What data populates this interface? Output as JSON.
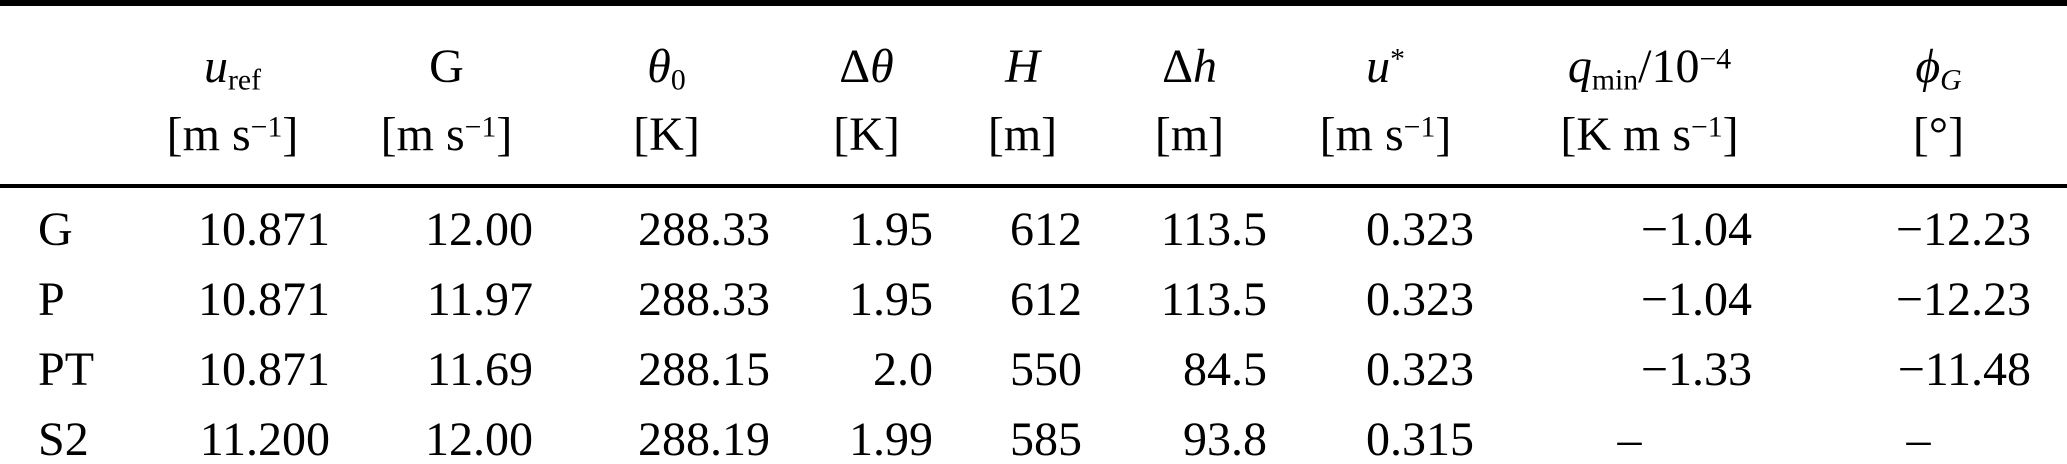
{
  "page": {
    "background": "#ffffff",
    "text_color": "#000000",
    "rule_color": "#000000"
  },
  "table": {
    "columns": [
      {
        "id": "case",
        "header": [],
        "unit": []
      },
      {
        "id": "u_ref",
        "header": [
          {
            "t": "u",
            "s": "i"
          },
          {
            "t": "ref",
            "s": "sub"
          }
        ],
        "unit": [
          {
            "t": "[m s",
            "s": "r"
          },
          {
            "t": "−1",
            "s": "sup"
          },
          {
            "t": "]",
            "s": "r"
          }
        ]
      },
      {
        "id": "G",
        "header": [
          {
            "t": "G",
            "s": "r"
          }
        ],
        "unit": [
          {
            "t": "[m s",
            "s": "r"
          },
          {
            "t": "−1",
            "s": "sup"
          },
          {
            "t": "]",
            "s": "r"
          }
        ]
      },
      {
        "id": "theta_0",
        "header": [
          {
            "t": "θ",
            "s": "i"
          },
          {
            "t": "0",
            "s": "sub"
          }
        ],
        "unit": [
          {
            "t": "[K]",
            "s": "r"
          }
        ]
      },
      {
        "id": "delta_theta",
        "header": [
          {
            "t": "Δ",
            "s": "r"
          },
          {
            "t": "θ",
            "s": "i"
          }
        ],
        "unit": [
          {
            "t": "[K]",
            "s": "r"
          }
        ]
      },
      {
        "id": "H",
        "header": [
          {
            "t": "H",
            "s": "i"
          }
        ],
        "unit": [
          {
            "t": "[m]",
            "s": "r"
          }
        ]
      },
      {
        "id": "delta_h",
        "header": [
          {
            "t": "Δ",
            "s": "r"
          },
          {
            "t": "h",
            "s": "i"
          }
        ],
        "unit": [
          {
            "t": "[m]",
            "s": "r"
          }
        ]
      },
      {
        "id": "u_star",
        "header": [
          {
            "t": "u",
            "s": "i"
          },
          {
            "t": "*",
            "s": "sup"
          }
        ],
        "unit": [
          {
            "t": "[m s",
            "s": "r"
          },
          {
            "t": "−1",
            "s": "sup"
          },
          {
            "t": "]",
            "s": "r"
          }
        ]
      },
      {
        "id": "q_min",
        "header": [
          {
            "t": "q",
            "s": "i"
          },
          {
            "t": "min",
            "s": "sub"
          },
          {
            "t": "/10",
            "s": "r"
          },
          {
            "t": "−4",
            "s": "sup"
          }
        ],
        "unit": [
          {
            "t": "[K m s",
            "s": "r"
          },
          {
            "t": "−1",
            "s": "sup"
          },
          {
            "t": "]",
            "s": "r"
          }
        ]
      },
      {
        "id": "phi_G",
        "header": [
          {
            "t": "ϕ",
            "s": "i"
          },
          {
            "t": "G",
            "s": "subi"
          }
        ],
        "unit": [
          {
            "t": "[°]",
            "s": "r"
          }
        ]
      }
    ],
    "rows": [
      {
        "cells": [
          "G",
          "10.871",
          "12.00",
          "288.33",
          "1.95",
          "612",
          "113.5",
          "0.323",
          "−1.04",
          "−12.23"
        ]
      },
      {
        "cells": [
          "P",
          "10.871",
          "11.97",
          "288.33",
          "1.95",
          "612",
          "113.5",
          "0.323",
          "−1.04",
          "−12.23"
        ]
      },
      {
        "cells": [
          "PT",
          "10.871",
          "11.69",
          "288.15",
          "2.0",
          "550",
          "84.5",
          "0.323",
          "−1.33",
          "−11.48"
        ]
      },
      {
        "cells": [
          "S2",
          "11.200",
          "12.00",
          "288.19",
          "1.99",
          "585",
          "93.8",
          "0.315",
          "–",
          "–"
        ]
      }
    ]
  }
}
